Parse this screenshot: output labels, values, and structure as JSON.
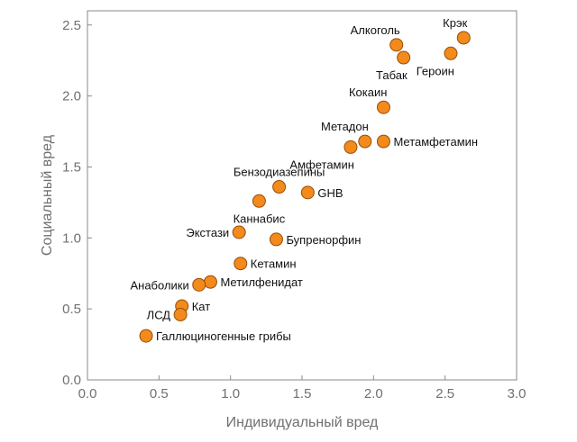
{
  "chart_data": {
    "type": "scatter",
    "xlabel": "Индивидуальный вред",
    "ylabel": "Социальный вред",
    "xlim": [
      0.0,
      3.0
    ],
    "ylim": [
      0.0,
      2.6
    ],
    "xticks": [
      "0.0",
      "0.5",
      "1.0",
      "1.5",
      "2.0",
      "2.5",
      "3.0"
    ],
    "yticks": [
      "0.0",
      "0.5",
      "1.0",
      "1.5",
      "2.0",
      "2.5"
    ],
    "grid": false,
    "marker_color": "#f28a1c",
    "marker_edge_color": "#9a4d05",
    "points": [
      {
        "label": "Крэк",
        "x": 2.63,
        "y": 2.41,
        "label_pos": "above-left"
      },
      {
        "label": "Героин",
        "x": 2.54,
        "y": 2.3,
        "label_pos": "below-left"
      },
      {
        "label": "Алкоголь",
        "x": 2.16,
        "y": 2.36,
        "label_pos": "above-left"
      },
      {
        "label": "Табак",
        "x": 2.21,
        "y": 2.27,
        "label_pos": "below-left"
      },
      {
        "label": "Кокаин",
        "x": 2.07,
        "y": 1.92,
        "label_pos": "above-left"
      },
      {
        "label": "Метадон",
        "x": 1.94,
        "y": 1.68,
        "label_pos": "above-left"
      },
      {
        "label": "Метамфетамин",
        "x": 2.07,
        "y": 1.68,
        "label_pos": "right"
      },
      {
        "label": "Амфетамин",
        "x": 1.84,
        "y": 1.64,
        "label_pos": "below-left"
      },
      {
        "label": "Бензодиазепины",
        "x": 1.34,
        "y": 1.36,
        "label_pos": "above"
      },
      {
        "label": "GHB",
        "x": 1.54,
        "y": 1.32,
        "label_pos": "right"
      },
      {
        "label": "Каннабис",
        "x": 1.2,
        "y": 1.26,
        "label_pos": "below"
      },
      {
        "label": "Экстази",
        "x": 1.06,
        "y": 1.04,
        "label_pos": "left"
      },
      {
        "label": "Бупренорфин",
        "x": 1.32,
        "y": 0.99,
        "label_pos": "right"
      },
      {
        "label": "Кетамин",
        "x": 1.07,
        "y": 0.82,
        "label_pos": "right"
      },
      {
        "label": "Метилфенидат",
        "x": 0.86,
        "y": 0.69,
        "label_pos": "right"
      },
      {
        "label": "Анаболики",
        "x": 0.78,
        "y": 0.67,
        "label_pos": "left"
      },
      {
        "label": "Кат",
        "x": 0.66,
        "y": 0.52,
        "label_pos": "right"
      },
      {
        "label": "ЛСД",
        "x": 0.65,
        "y": 0.46,
        "label_pos": "left"
      },
      {
        "label": "Галлюциногенные грибы",
        "x": 0.41,
        "y": 0.31,
        "label_pos": "right"
      }
    ]
  }
}
